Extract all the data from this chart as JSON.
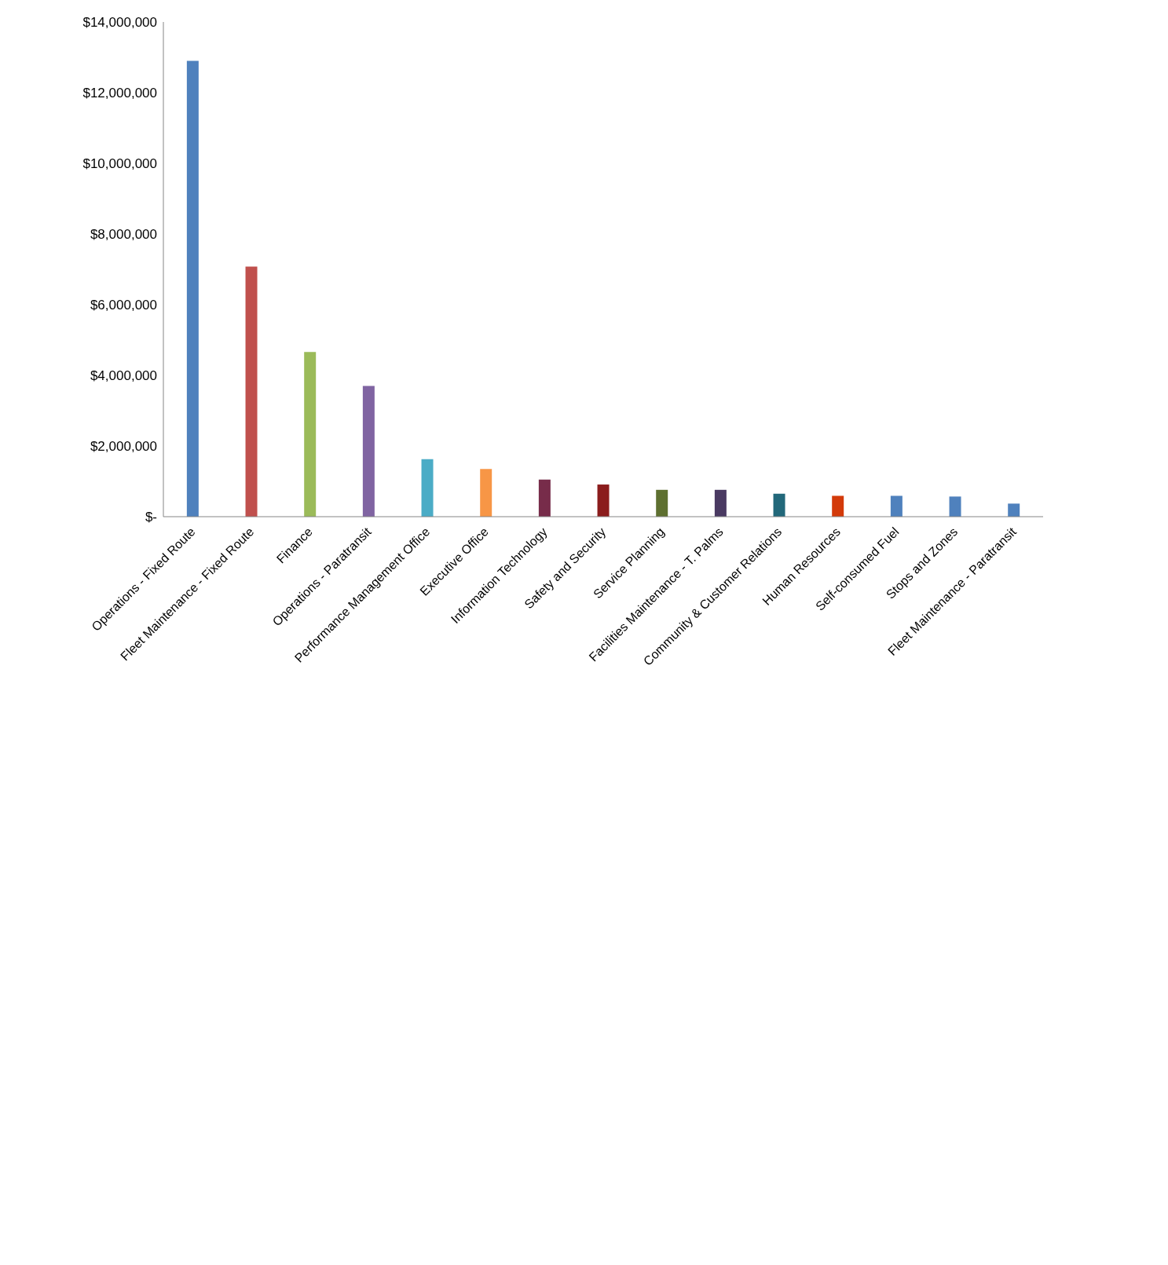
{
  "chart_data": {
    "type": "bar",
    "categories": [
      "Operations - Fixed Route",
      "Fleet Maintenance - Fixed Route",
      "Finance",
      "Operations - Paratransit",
      "Performance Management Office",
      "Executive Office",
      "Information Technology",
      "Safety and Security",
      "Service Planning",
      "Facilities Maintenance - T. Palms",
      "Community & Customer Relations",
      "Human Resources",
      "Self-consumed Fuel",
      "Stops and Zones",
      "Fleet Maintenance - Paratransit"
    ],
    "values": [
      12900000,
      7080000,
      4660000,
      3700000,
      1630000,
      1350000,
      1050000,
      910000,
      760000,
      760000,
      650000,
      590000,
      590000,
      570000,
      370000
    ],
    "colors": [
      "#4f81bd",
      "#c0504d",
      "#9bbb59",
      "#8064a2",
      "#4bacc6",
      "#f79646",
      "#772c4a",
      "#8b1c1c",
      "#5e7030",
      "#4a3a62",
      "#22687a",
      "#d33a0a",
      "#4f81bd",
      "#4f81bd",
      "#4f81bd"
    ],
    "ylim": [
      0,
      14000000
    ],
    "yticks": [
      {
        "value": 0,
        "label": "$-"
      },
      {
        "value": 2000000,
        "label": "$2,000,000"
      },
      {
        "value": 4000000,
        "label": "$4,000,000"
      },
      {
        "value": 6000000,
        "label": "$6,000,000"
      },
      {
        "value": 8000000,
        "label": "$8,000,000"
      },
      {
        "value": 10000000,
        "label": "$10,000,000"
      },
      {
        "value": 12000000,
        "label": "$12,000,000"
      },
      {
        "value": 14000000,
        "label": "$14,000,000"
      }
    ],
    "grid": false,
    "legend": false
  }
}
